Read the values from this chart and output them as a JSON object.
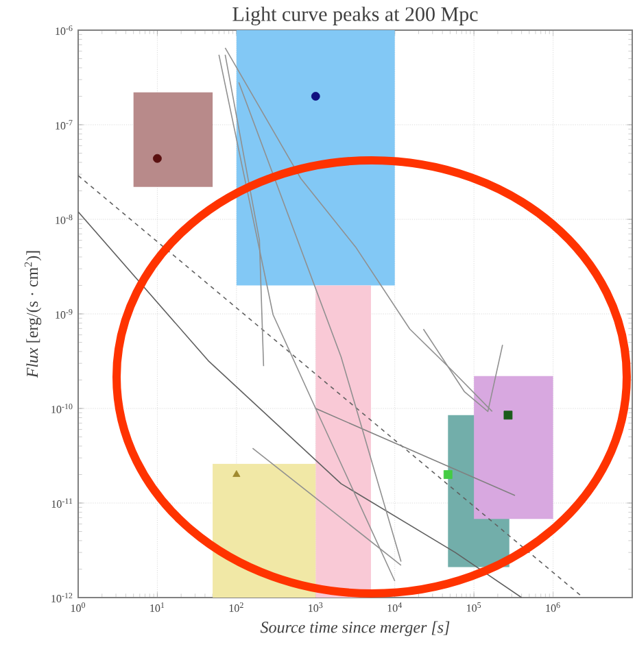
{
  "chart_data": {
    "type": "line",
    "title": "Light curve peaks at 200 Mpc",
    "xlabel": "Source time since merger [s]",
    "ylabel": "*Flux* [erg/(s · cm$^{2}$)]",
    "log": "xy",
    "grid": true,
    "xlim": [
      1,
      10000000
    ],
    "ylim": [
      1e-12,
      1e-06
    ],
    "xticks": [
      {
        "value": 1,
        "label": "10$^{0}$"
      },
      {
        "value": 10,
        "label": "10$^{1}$"
      },
      {
        "value": 100,
        "label": "10$^{2}$"
      },
      {
        "value": 1000,
        "label": "10$^{3}$"
      },
      {
        "value": 10000,
        "label": "10$^{4}$"
      },
      {
        "value": 100000,
        "label": "10$^{5}$"
      },
      {
        "value": 1000000,
        "label": "10$^{6}$"
      }
    ],
    "yticks": [
      {
        "value": 1e-12,
        "label": "10$^{-12}$"
      },
      {
        "value": 1e-11,
        "label": "10$^{-11}$"
      },
      {
        "value": 1e-10,
        "label": "10$^{-10}$"
      },
      {
        "value": 1e-09,
        "label": "10$^{-9}$"
      },
      {
        "value": 1e-08,
        "label": "10$^{-8}$"
      },
      {
        "value": 1e-07,
        "label": "10$^{-7}$"
      },
      {
        "value": 1e-06,
        "label": "10$^{-6}$"
      }
    ],
    "series": [
      {
        "color": "#b88a8a",
        "x": [
          5,
          50
        ],
        "values": [
          null,
          null
        ],
        "upper": [
          2.2e-07,
          2.2e-07
        ],
        "lower": [
          2.2e-08,
          2.2e-08
        ]
      },
      {
        "color": "#82c8f5",
        "x": [
          100,
          10000
        ],
        "values": [
          null,
          null
        ],
        "upper": [
          1e-06,
          1e-06
        ],
        "lower": [
          2e-09,
          2e-09
        ]
      },
      {
        "color": "#f9c9d6",
        "x": [
          1000,
          5000
        ],
        "values": [
          null,
          null
        ],
        "upper": [
          2e-09,
          2e-09
        ],
        "lower": [
          1e-12,
          1e-12
        ]
      },
      {
        "color": "#f1e8a6",
        "x": [
          50,
          1000
        ],
        "values": [
          null,
          null
        ],
        "upper": [
          2.6e-11,
          2.6e-11
        ],
        "lower": [
          1e-12,
          1e-12
        ]
      },
      {
        "color": "#72aeaa",
        "x": [
          47000,
          280000
        ],
        "values": [
          null,
          null
        ],
        "upper": [
          8.5e-11,
          8.5e-11
        ],
        "lower": [
          2.1e-12,
          2.1e-12
        ]
      },
      {
        "color": "#d8a8e0",
        "x": [
          100000,
          1000000
        ],
        "values": [
          null,
          null
        ],
        "upper": [
          2.2e-10,
          2.2e-10
        ],
        "lower": [
          6.8e-12,
          6.8e-12
        ]
      },
      {
        "type": "line",
        "color": "#606060",
        "line_style": "solid",
        "x": [
          1,
          44,
          2100,
          58000,
          400000
        ],
        "values": [
          1.2e-08,
          3.2e-10,
          1.6e-11,
          3e-12,
          1e-12
        ]
      },
      {
        "type": "line",
        "color": "#606060",
        "line_style": "dashed",
        "x": [
          1,
          2400000
        ],
        "values": [
          2.9e-08,
          1e-12
        ]
      },
      {
        "type": "line",
        "color": "#909090",
        "line_style": "solid",
        "x": [
          160,
          12000
        ],
        "values": [
          3.8e-11,
          2.2e-12
        ]
      },
      {
        "type": "line",
        "color": "#808080",
        "line_style": "solid",
        "x": [
          1000,
          330000
        ],
        "values": [
          1e-10,
          1.2e-11
        ]
      },
      {
        "type": "line",
        "color": "#909090",
        "line_style": "solid",
        "x": [
          60,
          290,
          1000,
          10000
        ],
        "values": [
          5.5e-07,
          9.8e-10,
          1e-10,
          1.5e-12
        ]
      },
      {
        "type": "line",
        "color": "#909090",
        "line_style": "solid",
        "x": [
          72,
          650,
          3200,
          15500,
          51000,
          170000
        ],
        "values": [
          6.5e-07,
          2.7e-08,
          5.1e-09,
          6.9e-10,
          2.6e-10,
          9.3e-11
        ]
      },
      {
        "type": "line",
        "color": "#909090",
        "line_style": "solid",
        "x": [
          72,
          195,
          220
        ],
        "values": [
          5.5e-07,
          6e-09,
          2.8e-10
        ]
      },
      {
        "type": "line",
        "color": "#909090",
        "line_style": "solid",
        "x": [
          107,
          2100,
          12000
        ],
        "values": [
          2.8e-07,
          3.5e-10,
          2.4e-12
        ]
      },
      {
        "type": "line",
        "color": "#909090",
        "line_style": "solid",
        "x": [
          23000,
          76000,
          150000,
          230000
        ],
        "values": [
          6.9e-10,
          1.5e-10,
          9.3e-11,
          4.7e-10
        ]
      },
      {
        "type": "scatter",
        "color": "#5a1010",
        "marker": "circle",
        "x": [
          10
        ],
        "values": [
          4.4e-08
        ]
      },
      {
        "type": "scatter",
        "color": "#101080",
        "marker": "circle",
        "x": [
          1000
        ],
        "values": [
          2e-07
        ]
      },
      {
        "type": "scatter",
        "color": "#a08a30",
        "marker": "triangle",
        "x": [
          100
        ],
        "values": [
          2e-11
        ]
      },
      {
        "type": "scatter",
        "color": "#44cc44",
        "marker": "square",
        "x": [
          47000
        ],
        "values": [
          2e-11
        ]
      },
      {
        "type": "scatter",
        "color": "#1a5c1a",
        "marker": "square",
        "x": [
          270000
        ],
        "values": [
          8.5e-11
        ]
      }
    ]
  }
}
